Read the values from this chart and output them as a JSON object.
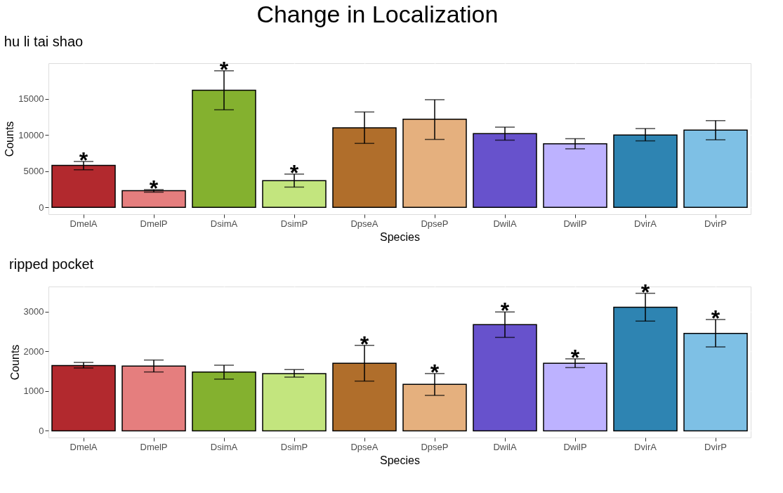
{
  "chart_data": [
    {
      "type": "bar",
      "title": "Change in Localization",
      "subtitle": "hu li tai shao",
      "xlabel": "Species",
      "ylabel": "Counts",
      "categories": [
        "DmelA",
        "DmelP",
        "DsimA",
        "DsimP",
        "DpseA",
        "DpseP",
        "DwilA",
        "DwilP",
        "DvirA",
        "DvirP"
      ],
      "values": [
        5800,
        2300,
        16200,
        3700,
        11000,
        12200,
        10200,
        8800,
        10000,
        10700
      ],
      "colors": [
        "#b2292e",
        "#e57e7e",
        "#84b12f",
        "#c3e57e",
        "#b06e2b",
        "#e5b07e",
        "#6752cc",
        "#bdb2ff",
        "#2e84b2",
        "#7ec0e5"
      ],
      "errors": [
        [
          5200,
          6350
        ],
        [
          2100,
          2450
        ],
        [
          13500,
          18900
        ],
        [
          2800,
          4600
        ],
        [
          8850,
          13200
        ],
        [
          9400,
          14900
        ],
        [
          9300,
          11100
        ],
        [
          8100,
          9500
        ],
        [
          9200,
          10900
        ],
        [
          9350,
          12000
        ]
      ],
      "ylim": [
        -950,
        19950
      ],
      "yticks": [
        0,
        5000,
        10000,
        15000
      ],
      "grid": true,
      "annotations": [
        {
          "text": "*",
          "x": "DmelA",
          "y": 6350
        },
        {
          "text": "*",
          "x": "DmelP",
          "y": 2450
        },
        {
          "text": "*",
          "x": "DsimA",
          "y": 18900
        },
        {
          "text": "*",
          "x": "DsimP",
          "y": 4600
        }
      ]
    },
    {
      "type": "bar",
      "subtitle": "ripped pocket",
      "xlabel": "Species",
      "ylabel": "Counts",
      "categories": [
        "DmelA",
        "DmelP",
        "DsimA",
        "DsimP",
        "DpseA",
        "DpseP",
        "DwilA",
        "DwilP",
        "DvirA",
        "DvirP"
      ],
      "values": [
        1640,
        1630,
        1480,
        1440,
        1700,
        1170,
        2670,
        1700,
        3110,
        2450
      ],
      "colors": [
        "#b2292e",
        "#e57e7e",
        "#84b12f",
        "#c3e57e",
        "#b06e2b",
        "#e5b07e",
        "#6752cc",
        "#bdb2ff",
        "#2e84b2",
        "#7ec0e5"
      ],
      "errors": [
        [
          1580,
          1720
        ],
        [
          1480,
          1780
        ],
        [
          1300,
          1650
        ],
        [
          1350,
          1540
        ],
        [
          1250,
          2150
        ],
        [
          890,
          1440
        ],
        [
          2350,
          2990
        ],
        [
          1590,
          1810
        ],
        [
          2760,
          3460
        ],
        [
          2110,
          2800
        ]
      ],
      "ylim": [
        -170,
        3630
      ],
      "yticks": [
        0,
        1000,
        2000,
        3000
      ],
      "grid": true,
      "annotations": [
        {
          "text": "*",
          "x": "DpseA",
          "y": 2150
        },
        {
          "text": "*",
          "x": "DpseP",
          "y": 1440
        },
        {
          "text": "*",
          "x": "DwilA",
          "y": 2990
        },
        {
          "text": "*",
          "x": "DwilP",
          "y": 1810
        },
        {
          "text": "*",
          "x": "DvirA",
          "y": 3460
        },
        {
          "text": "*",
          "x": "DvirP",
          "y": 2800
        }
      ]
    }
  ]
}
